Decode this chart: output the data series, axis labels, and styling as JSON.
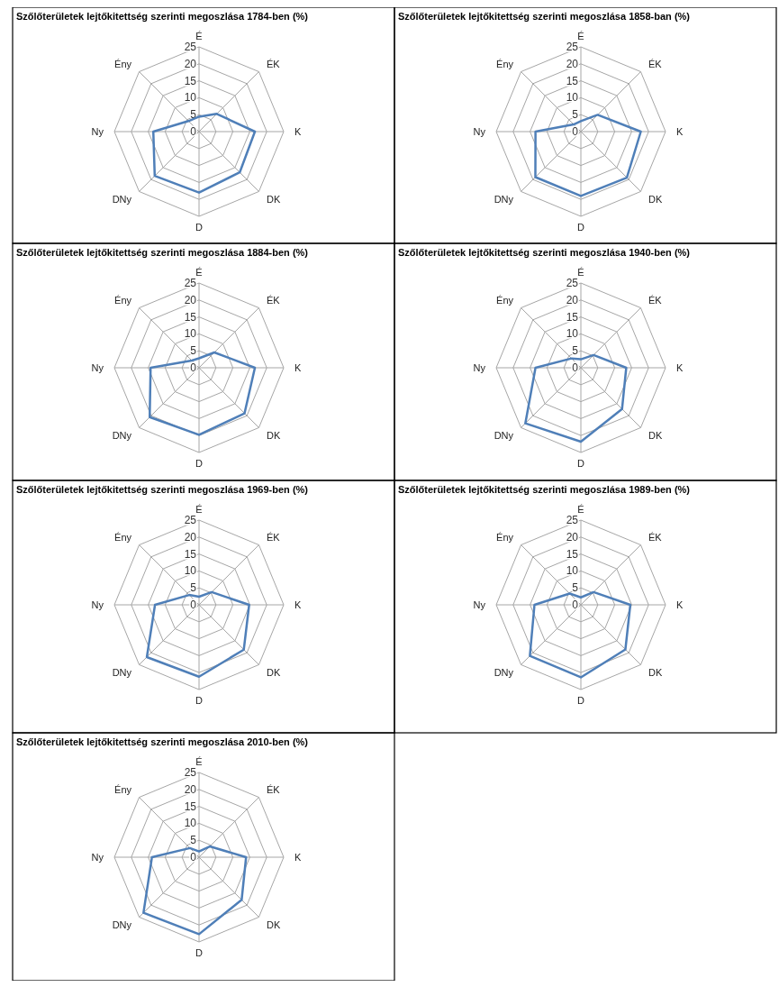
{
  "chart_data": [
    {
      "type": "radar",
      "title": "Szőlőterületek lejtőkitettség szerinti megoszlása 1784-ben (%)",
      "categories": [
        "É",
        "ÉK",
        "K",
        "DK",
        "D",
        "DNy",
        "Ny",
        "Ény"
      ],
      "series": [
        {
          "color": "#4f7fb8",
          "values": [
            4.4,
            7.4,
            16.5,
            17,
            18,
            18.5,
            13.5,
            4.4
          ]
        }
      ],
      "ylim": [
        0,
        25
      ],
      "yticks": [
        0,
        5,
        10,
        15,
        20,
        25
      ],
      "grid": true
    },
    {
      "type": "radar",
      "title": "Szőlőterületek lejtőkitettség szerinti megoszlása 1858-ban (%)",
      "categories": [
        "É",
        "ÉK",
        "K",
        "DK",
        "D",
        "DNy",
        "Ny",
        "Ény"
      ],
      "series": [
        {
          "color": "#4f7fb8",
          "values": [
            3.1,
            7,
            17.7,
            19.2,
            19,
            19,
            13.4,
            3
          ]
        }
      ],
      "ylim": [
        0,
        25
      ],
      "yticks": [
        0,
        5,
        10,
        15,
        20,
        25
      ],
      "grid": true
    },
    {
      "type": "radar",
      "title": "Szőlőterületek lejtőkitettség szerinti megoszlása 1884-ben (%)",
      "categories": [
        "É",
        "ÉK",
        "K",
        "DK",
        "D",
        "DNy",
        "Ny",
        "Ény"
      ],
      "series": [
        {
          "color": "#4f7fb8",
          "values": [
            2.8,
            6.4,
            16.5,
            19,
            19.8,
            20.6,
            14.3,
            3
          ]
        }
      ],
      "ylim": [
        0,
        25
      ],
      "yticks": [
        0,
        5,
        10,
        15,
        20,
        25
      ],
      "grid": true
    },
    {
      "type": "radar",
      "title": "Szőlőterületek lejtőkitettség szerinti megoszlása 1940-ben (%)",
      "categories": [
        "É",
        "ÉK",
        "K",
        "DK",
        "D",
        "DNy",
        "Ny",
        "Ény"
      ],
      "series": [
        {
          "color": "#4f7fb8",
          "values": [
            2.5,
            5.3,
            13.4,
            17.2,
            21.8,
            23.2,
            13.4,
            3.9
          ]
        }
      ],
      "ylim": [
        0,
        25
      ],
      "yticks": [
        0,
        5,
        10,
        15,
        20,
        25
      ],
      "grid": true
    },
    {
      "type": "radar",
      "title": "Szőlőterületek lejtőkitettség szerinti megoszlása 1969-ben (%)",
      "categories": [
        "É",
        "ÉK",
        "K",
        "DK",
        "D",
        "DNy",
        "Ny",
        "Ény"
      ],
      "series": [
        {
          "color": "#4f7fb8",
          "values": [
            2.4,
            5.3,
            14.8,
            18.7,
            21.2,
            21.8,
            13,
            4.1
          ]
        }
      ],
      "ylim": [
        0,
        25
      ],
      "yticks": [
        0,
        5,
        10,
        15,
        20,
        25
      ],
      "grid": true
    },
    {
      "type": "radar",
      "title": "Szőlőterületek lejtőkitettség szerinti megoszlása 1989-ben (%)",
      "categories": [
        "É",
        "ÉK",
        "K",
        "DK",
        "D",
        "DNy",
        "Ny",
        "Ény"
      ],
      "series": [
        {
          "color": "#4f7fb8",
          "values": [
            2.2,
            5.3,
            14.6,
            18.6,
            21.4,
            21.3,
            13.7,
            4.7
          ]
        }
      ],
      "ylim": [
        0,
        25
      ],
      "yticks": [
        0,
        5,
        10,
        15,
        20,
        25
      ],
      "grid": true
    },
    {
      "type": "radar",
      "title": "Szőlőterületek lejtőkitettség szerinti megoszlása 2010-ben (%)",
      "categories": [
        "É",
        "ÉK",
        "K",
        "DK",
        "D",
        "DNy",
        "Ny",
        "Ény"
      ],
      "series": [
        {
          "color": "#4f7fb8",
          "values": [
            1.7,
            4.5,
            13.9,
            17.8,
            22.7,
            23.2,
            13.9,
            3.8
          ]
        }
      ],
      "ylim": [
        0,
        25
      ],
      "yticks": [
        0,
        5,
        10,
        15,
        20,
        25
      ],
      "grid": true
    }
  ]
}
